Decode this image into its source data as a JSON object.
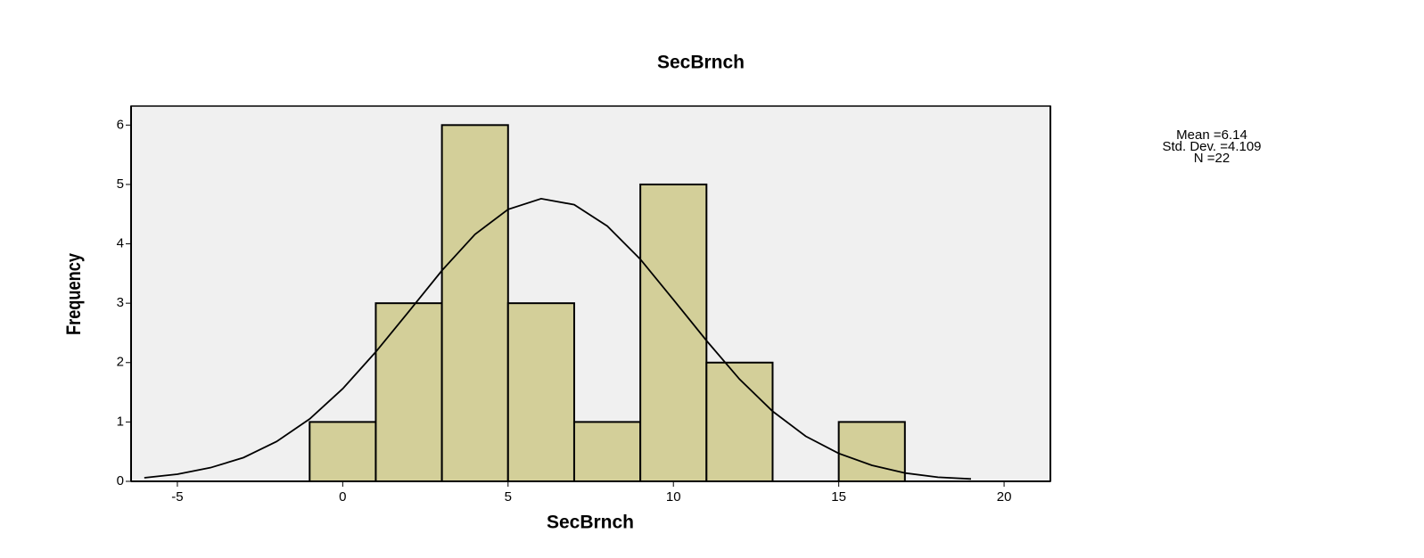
{
  "chart_data": {
    "type": "histogram",
    "title": "SecBrnch",
    "x_label": "SecBrnch",
    "y_label": "Frequency",
    "bins": [
      -1,
      1,
      3,
      5,
      7,
      9,
      11,
      13,
      15,
      17
    ],
    "values": [
      1,
      3,
      6,
      3,
      1,
      5,
      2,
      0,
      1
    ],
    "color": "#d3cf99",
    "xlim": [
      -6.4,
      21.4
    ],
    "xticks": [
      -5,
      0,
      5,
      10,
      15,
      20
    ],
    "ylim": [
      0,
      6.32
    ],
    "yticks": [
      0,
      1,
      2,
      3,
      4,
      5,
      6
    ],
    "curve": {
      "x": [
        -6,
        -5,
        -4,
        -3,
        -2,
        -1,
        0,
        1,
        2,
        3,
        4,
        5,
        6,
        7,
        8,
        9,
        10,
        11,
        12,
        13,
        14,
        15,
        16,
        17,
        18,
        19
      ],
      "values": [
        0.06,
        0.12,
        0.23,
        0.4,
        0.67,
        1.05,
        1.56,
        2.18,
        2.86,
        3.55,
        4.16,
        4.58,
        4.76,
        4.66,
        4.3,
        3.74,
        3.06,
        2.37,
        1.72,
        1.18,
        0.76,
        0.47,
        0.27,
        0.14,
        0.07,
        0.04
      ]
    },
    "annotations": [
      "Mean =6.14",
      "Std. Dev. =4.109",
      "N =22"
    ]
  }
}
